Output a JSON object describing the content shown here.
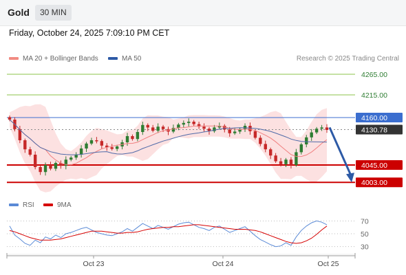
{
  "header": {
    "symbol": "Gold",
    "timeframe": "30 MIN",
    "datetime": "Friday, October 24, 2025 7:09:10 PM CET"
  },
  "legend": {
    "ma20_label": "MA 20 + Bollinger Bands",
    "ma50_label": "MA 50",
    "credit": "Research © 2025 Trading Central",
    "rsi_label": "RSI",
    "ma9_label": "9MA"
  },
  "colors": {
    "up": "#2e7d32",
    "down": "#c62828",
    "bollinger_fill": "#f9c9c9",
    "ma20": "#f08080",
    "ma50": "#4f6aa8",
    "resistance": "#8bc34a",
    "pivot": "#3b6ecf",
    "support": "#cc0000",
    "arrow": "#2d5aa6",
    "rsi": "#5a8ad6",
    "rsi_ma": "#d60000"
  },
  "chart_data": [
    {
      "type": "candlestick",
      "y_range": [
        3970,
        4290
      ],
      "x_ticks": [
        "Oct 23",
        "Oct 24",
        "Oct 25"
      ],
      "levels": [
        {
          "label": "4265.00",
          "value": 4265,
          "kind": "resistance"
        },
        {
          "label": "4215.00",
          "value": 4215,
          "kind": "resistance"
        },
        {
          "label": "4160.00",
          "value": 4160,
          "kind": "pivot"
        },
        {
          "label": "4130.78",
          "value": 4130.78,
          "kind": "last"
        },
        {
          "label": "4045.00",
          "value": 4045,
          "kind": "support"
        },
        {
          "label": "4003.00",
          "value": 4003,
          "kind": "support"
        }
      ],
      "close_path": [
        4155,
        4132,
        4105,
        4083,
        4070,
        4040,
        4028,
        4045,
        4036,
        4050,
        4043,
        4058,
        4063,
        4070,
        4085,
        4097,
        4105,
        4103,
        4092,
        4088,
        4084,
        4090,
        4100,
        4115,
        4108,
        4125,
        4142,
        4136,
        4128,
        4138,
        4132,
        4126,
        4135,
        4143,
        4147,
        4150,
        4144,
        4138,
        4133,
        4127,
        4136,
        4140,
        4131,
        4122,
        4126,
        4132,
        4140,
        4127,
        4111,
        4096,
        4083,
        4068,
        4054,
        4047,
        4058,
        4045,
        4076,
        4095,
        4112,
        4124,
        4133,
        4136,
        4130
      ],
      "projection": {
        "from": 4136,
        "to": 4003
      }
    },
    {
      "type": "line",
      "name": "RSI",
      "y_ticks": [
        70,
        50,
        30
      ],
      "y_range": [
        20,
        80
      ],
      "series": [
        {
          "name": "RSI",
          "values": [
            62,
            48,
            42,
            35,
            32,
            40,
            36,
            45,
            42,
            48,
            44,
            50,
            52,
            55,
            58,
            60,
            56,
            52,
            50,
            48,
            47,
            50,
            53,
            58,
            54,
            60,
            66,
            62,
            58,
            63,
            60,
            57,
            61,
            65,
            67,
            68,
            64,
            60,
            58,
            55,
            60,
            62,
            57,
            52,
            55,
            58,
            61,
            54,
            47,
            41,
            37,
            33,
            30,
            31,
            36,
            32,
            45,
            55,
            62,
            67,
            70,
            68,
            64
          ]
        },
        {
          "name": "9MA",
          "values": [
            55,
            53,
            50,
            47,
            44,
            42,
            40,
            40,
            40,
            41,
            42,
            44,
            46,
            48,
            50,
            52,
            54,
            54,
            54,
            53,
            52,
            51,
            51,
            52,
            52,
            53,
            55,
            57,
            58,
            59,
            60,
            60,
            61,
            61,
            62,
            63,
            64,
            64,
            63,
            62,
            61,
            60,
            59,
            58,
            57,
            57,
            57,
            56,
            55,
            53,
            50,
            47,
            44,
            41,
            38,
            36,
            35,
            36,
            39,
            43,
            49,
            56,
            62
          ]
        }
      ]
    }
  ]
}
